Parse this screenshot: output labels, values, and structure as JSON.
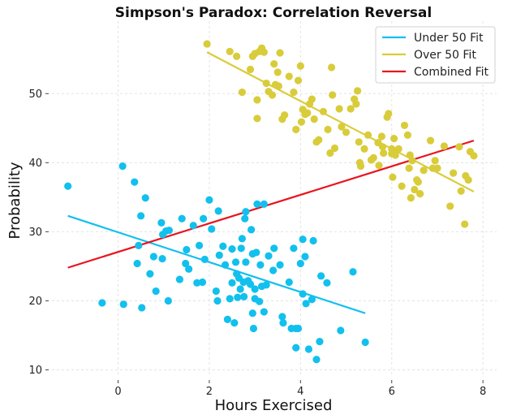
{
  "chart_data": {
    "type": "scatter",
    "title": "Simpson's Paradox: Correlation Reversal",
    "xlabel": "Hours Exercised",
    "ylabel": "Probability",
    "xlim": [
      -1.45,
      8.3
    ],
    "ylim": [
      9,
      60.5
    ],
    "xticks": [
      0,
      2,
      4,
      6,
      8
    ],
    "yticks": [
      10,
      20,
      30,
      40,
      50
    ],
    "grid": true,
    "legend_position": "top-right",
    "colors": {
      "under": "#12c0ee",
      "over": "#d9cc3a",
      "combined": "#e8141e"
    },
    "series": [
      {
        "name": "Under 50",
        "color": "#12c0ee",
        "points": [
          [
            -1.1,
            36.6
          ],
          [
            -0.35,
            19.7
          ],
          [
            0.1,
            39.5
          ],
          [
            0.12,
            19.5
          ],
          [
            0.36,
            37.2
          ],
          [
            0.42,
            25.4
          ],
          [
            0.45,
            28.0
          ],
          [
            0.5,
            32.3
          ],
          [
            0.52,
            19.0
          ],
          [
            0.6,
            34.9
          ],
          [
            0.7,
            23.9
          ],
          [
            0.78,
            26.4
          ],
          [
            0.83,
            21.4
          ],
          [
            0.95,
            31.3
          ],
          [
            0.97,
            26.1
          ],
          [
            0.98,
            29.6
          ],
          [
            1.05,
            30.1
          ],
          [
            1.1,
            20.0
          ],
          [
            1.12,
            30.2
          ],
          [
            1.35,
            23.1
          ],
          [
            1.4,
            31.9
          ],
          [
            1.48,
            25.4
          ],
          [
            1.5,
            27.4
          ],
          [
            1.55,
            24.6
          ],
          [
            1.65,
            30.9
          ],
          [
            1.73,
            22.6
          ],
          [
            1.78,
            28.0
          ],
          [
            1.85,
            22.7
          ],
          [
            1.87,
            31.9
          ],
          [
            1.9,
            26.0
          ],
          [
            2.0,
            34.6
          ],
          [
            2.05,
            30.4
          ],
          [
            2.15,
            21.4
          ],
          [
            2.18,
            20.0
          ],
          [
            2.2,
            33.0
          ],
          [
            2.22,
            26.6
          ],
          [
            2.3,
            27.9
          ],
          [
            2.35,
            25.2
          ],
          [
            2.4,
            17.3
          ],
          [
            2.45,
            20.3
          ],
          [
            2.5,
            22.6
          ],
          [
            2.5,
            27.5
          ],
          [
            2.55,
            16.8
          ],
          [
            2.58,
            25.6
          ],
          [
            2.6,
            23.9
          ],
          [
            2.62,
            20.5
          ],
          [
            2.65,
            23.3
          ],
          [
            2.68,
            21.7
          ],
          [
            2.7,
            27.6
          ],
          [
            2.72,
            29.0
          ],
          [
            2.75,
            22.7
          ],
          [
            2.76,
            20.6
          ],
          [
            2.78,
            31.9
          ],
          [
            2.8,
            32.9
          ],
          [
            2.8,
            25.6
          ],
          [
            2.85,
            22.9
          ],
          [
            2.9,
            22.4
          ],
          [
            2.92,
            30.3
          ],
          [
            2.95,
            26.8
          ],
          [
            2.95,
            18.2
          ],
          [
            2.97,
            16.0
          ],
          [
            3.0,
            20.3
          ],
          [
            3.0,
            21.7
          ],
          [
            3.03,
            27.0
          ],
          [
            3.05,
            34.0
          ],
          [
            3.1,
            19.9
          ],
          [
            3.12,
            25.2
          ],
          [
            3.15,
            22.1
          ],
          [
            3.2,
            34.0
          ],
          [
            3.2,
            18.4
          ],
          [
            3.25,
            22.3
          ],
          [
            3.3,
            26.5
          ],
          [
            3.4,
            24.4
          ],
          [
            3.42,
            27.6
          ],
          [
            3.55,
            25.2
          ],
          [
            3.6,
            17.7
          ],
          [
            3.62,
            16.8
          ],
          [
            3.75,
            22.7
          ],
          [
            3.8,
            16.0
          ],
          [
            3.85,
            27.6
          ],
          [
            3.9,
            13.2
          ],
          [
            3.9,
            16.0
          ],
          [
            3.95,
            16.0
          ],
          [
            4.0,
            25.4
          ],
          [
            4.05,
            28.9
          ],
          [
            4.05,
            21.0
          ],
          [
            4.1,
            26.4
          ],
          [
            4.12,
            19.6
          ],
          [
            4.18,
            13.0
          ],
          [
            4.25,
            20.2
          ],
          [
            4.28,
            28.7
          ],
          [
            4.35,
            11.5
          ],
          [
            4.42,
            14.1
          ],
          [
            4.45,
            23.6
          ],
          [
            4.58,
            22.6
          ],
          [
            4.88,
            15.7
          ],
          [
            5.15,
            24.2
          ],
          [
            5.42,
            14.0
          ]
        ]
      },
      {
        "name": "Over 50",
        "color": "#d9cc3a",
        "points": [
          [
            1.95,
            57.2
          ],
          [
            2.45,
            56.1
          ],
          [
            2.6,
            55.4
          ],
          [
            2.72,
            50.2
          ],
          [
            2.9,
            53.5
          ],
          [
            2.95,
            55.4
          ],
          [
            3.0,
            55.8
          ],
          [
            3.05,
            49.1
          ],
          [
            3.05,
            46.4
          ],
          [
            3.1,
            56.1
          ],
          [
            3.15,
            56.6
          ],
          [
            3.2,
            56.0
          ],
          [
            3.25,
            51.5
          ],
          [
            3.3,
            50.3
          ],
          [
            3.38,
            49.8
          ],
          [
            3.42,
            54.3
          ],
          [
            3.45,
            51.3
          ],
          [
            3.5,
            53.1
          ],
          [
            3.52,
            51.1
          ],
          [
            3.55,
            55.9
          ],
          [
            3.6,
            46.3
          ],
          [
            3.65,
            46.9
          ],
          [
            3.75,
            52.5
          ],
          [
            3.85,
            50.2
          ],
          [
            3.9,
            44.8
          ],
          [
            3.95,
            51.9
          ],
          [
            4.0,
            54.0
          ],
          [
            4.02,
            45.9
          ],
          [
            4.05,
            47.7
          ],
          [
            4.1,
            47.0
          ],
          [
            4.15,
            47.2
          ],
          [
            4.2,
            48.5
          ],
          [
            4.25,
            49.2
          ],
          [
            4.3,
            46.3
          ],
          [
            4.35,
            43.0
          ],
          [
            4.4,
            43.3
          ],
          [
            4.5,
            47.4
          ],
          [
            4.6,
            44.8
          ],
          [
            4.65,
            41.4
          ],
          [
            4.68,
            53.8
          ],
          [
            4.7,
            49.8
          ],
          [
            4.75,
            42.1
          ],
          [
            4.85,
            47.8
          ],
          [
            4.9,
            45.2
          ],
          [
            5.0,
            44.4
          ],
          [
            5.1,
            47.8
          ],
          [
            5.18,
            49.2
          ],
          [
            5.22,
            48.5
          ],
          [
            5.25,
            50.4
          ],
          [
            5.28,
            43.0
          ],
          [
            5.3,
            40.0
          ],
          [
            5.32,
            39.5
          ],
          [
            5.4,
            42.0
          ],
          [
            5.48,
            44.0
          ],
          [
            5.55,
            40.4
          ],
          [
            5.6,
            40.7
          ],
          [
            5.7,
            42.9
          ],
          [
            5.72,
            39.6
          ],
          [
            5.78,
            43.8
          ],
          [
            5.8,
            42.3
          ],
          [
            5.82,
            41.4
          ],
          [
            5.9,
            46.6
          ],
          [
            5.93,
            47.1
          ],
          [
            6.0,
            41.3
          ],
          [
            6.0,
            42.0
          ],
          [
            6.02,
            37.9
          ],
          [
            6.05,
            43.5
          ],
          [
            6.08,
            41.1
          ],
          [
            6.15,
            42.0
          ],
          [
            6.22,
            36.6
          ],
          [
            6.28,
            45.4
          ],
          [
            6.35,
            44.0
          ],
          [
            6.38,
            39.2
          ],
          [
            6.4,
            41.1
          ],
          [
            6.42,
            34.9
          ],
          [
            6.45,
            40.3
          ],
          [
            6.5,
            36.1
          ],
          [
            6.55,
            37.5
          ],
          [
            6.58,
            37.2
          ],
          [
            6.62,
            35.5
          ],
          [
            6.7,
            38.9
          ],
          [
            6.85,
            43.2
          ],
          [
            6.9,
            39.2
          ],
          [
            6.95,
            40.3
          ],
          [
            7.0,
            39.2
          ],
          [
            7.15,
            42.4
          ],
          [
            7.28,
            33.7
          ],
          [
            7.35,
            38.5
          ],
          [
            7.48,
            42.3
          ],
          [
            7.52,
            35.9
          ],
          [
            7.6,
            31.1
          ],
          [
            7.62,
            38.1
          ],
          [
            7.68,
            37.5
          ],
          [
            7.72,
            41.6
          ],
          [
            7.8,
            41.0
          ]
        ]
      }
    ],
    "fits": [
      {
        "name": "Under 50 Fit",
        "color": "#12c0ee",
        "x": [
          -1.1,
          5.42
        ],
        "y": [
          32.3,
          18.2
        ]
      },
      {
        "name": "Over 50 Fit",
        "color": "#d9cc3a",
        "x": [
          1.95,
          7.8
        ],
        "y": [
          56.0,
          35.8
        ]
      },
      {
        "name": "Combined Fit",
        "color": "#e8141e",
        "x": [
          -1.1,
          7.8
        ],
        "y": [
          24.8,
          43.2
        ]
      }
    ]
  }
}
